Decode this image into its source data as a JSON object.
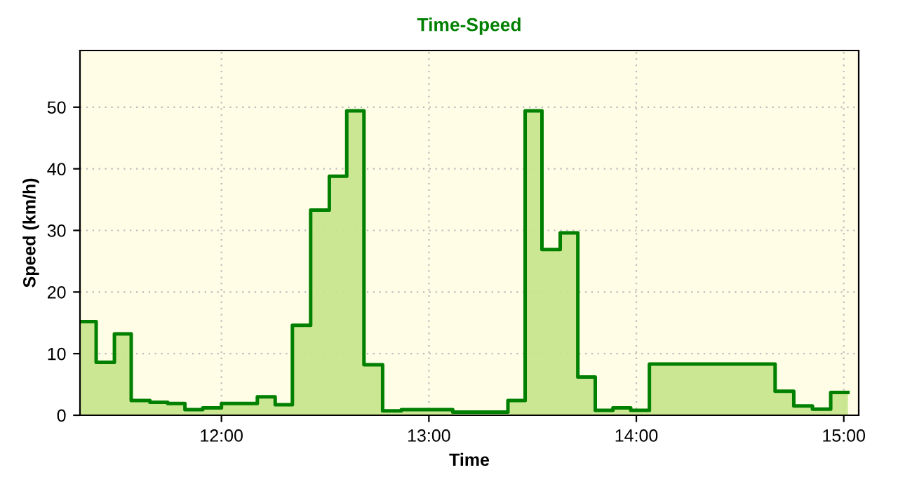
{
  "chart_data": {
    "type": "area",
    "title": "Time-Speed",
    "xlabel": "Time",
    "ylabel": "Speed (km/h)",
    "x": [
      11.318,
      11.396,
      11.396,
      11.484,
      11.484,
      11.565,
      11.565,
      11.655,
      11.655,
      11.741,
      11.741,
      11.824,
      11.824,
      11.91,
      11.91,
      12.0,
      12.0,
      12.173,
      12.173,
      12.259,
      12.259,
      12.342,
      12.342,
      12.43,
      12.43,
      12.52,
      12.52,
      12.604,
      12.604,
      12.687,
      12.687,
      12.777,
      12.777,
      12.867,
      12.867,
      13.115,
      13.115,
      13.381,
      13.381,
      13.464,
      13.464,
      13.545,
      13.545,
      13.633,
      13.633,
      13.718,
      13.718,
      13.802,
      13.802,
      13.887,
      13.887,
      13.973,
      13.973,
      14.063,
      14.063,
      14.669,
      14.669,
      14.759,
      14.759,
      14.849,
      14.849,
      14.937,
      14.937,
      15.02
    ],
    "series": [
      {
        "color": "#008000",
        "values": [
          15.2,
          15.2,
          8.6,
          8.6,
          13.2,
          13.2,
          2.4,
          2.4,
          2.1,
          2.1,
          1.9,
          1.9,
          0.9,
          0.9,
          1.2,
          1.2,
          1.9,
          1.9,
          3.0,
          3.0,
          1.7,
          1.7,
          14.6,
          14.6,
          33.3,
          33.3,
          38.8,
          38.8,
          49.4,
          49.4,
          8.2,
          8.2,
          0.7,
          0.7,
          0.9,
          0.9,
          0.5,
          0.5,
          2.4,
          2.4,
          49.4,
          49.4,
          26.9,
          26.9,
          29.6,
          29.6,
          6.2,
          6.2,
          0.8,
          0.8,
          1.2,
          1.2,
          0.8,
          0.8,
          8.3,
          8.3,
          3.9,
          3.9,
          1.5,
          1.5,
          1.0,
          1.0,
          3.7,
          3.7
        ]
      }
    ],
    "xlim": [
      11.318,
      15.072
    ],
    "xticks": [
      {
        "value": 12,
        "label": "12:00"
      },
      {
        "value": 13,
        "label": "13:00"
      },
      {
        "value": 14,
        "label": "14:00"
      },
      {
        "value": 15,
        "label": "15:00"
      }
    ],
    "ylim": [
      0,
      59.2
    ],
    "yticks": [
      0,
      10,
      20,
      30,
      40,
      50
    ],
    "grid": true,
    "legend": false
  }
}
